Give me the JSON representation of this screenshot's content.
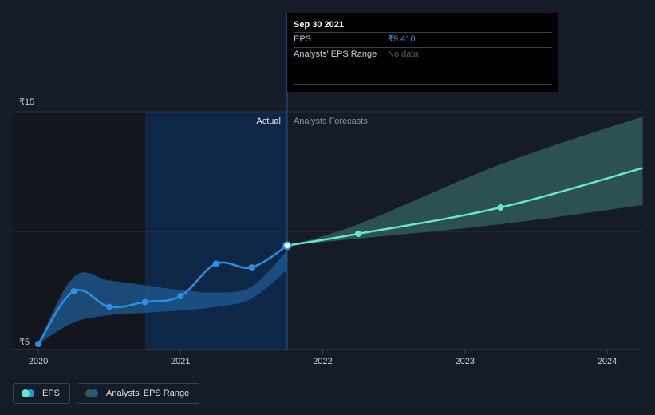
{
  "tooltip": {
    "date": "Sep 30 2021",
    "eps_label": "EPS",
    "eps_value": "₹9.410",
    "range_label": "Analysts' EPS Range",
    "range_value": "No data"
  },
  "legend": {
    "eps_label": "EPS",
    "range_label": "Analysts' EPS Range"
  },
  "colors": {
    "background": "#151b27",
    "eps_actual": "#2d8fe0",
    "eps_forecast": "#62e8d0",
    "range_actual": "#1f5c96",
    "range_forecast": "#2f5a5a",
    "highlight_region": "#0f2746"
  },
  "chart_data": {
    "type": "line",
    "y_unit": "₹",
    "ylim": [
      5,
      15
    ],
    "yticks": [
      {
        "value": 15,
        "label": "₹15"
      },
      {
        "value": 5,
        "label": "₹5"
      }
    ],
    "xlim": [
      2020,
      2024.25
    ],
    "xticks": [
      {
        "value": 2020,
        "label": "2020"
      },
      {
        "value": 2021,
        "label": "2021"
      },
      {
        "value": 2022,
        "label": "2022"
      },
      {
        "value": 2023,
        "label": "2023"
      },
      {
        "value": 2024,
        "label": "2024"
      }
    ],
    "gridlines_y": [
      15,
      10
    ],
    "regions": {
      "actual_label": "Actual",
      "forecast_label": "Analysts Forecasts",
      "divider_x": 2021.75,
      "highlight_start_x": 2020.75
    },
    "series": [
      {
        "name": "EPS",
        "role": "actual",
        "points": [
          {
            "x": 2020.0,
            "y": 5.3
          },
          {
            "x": 2020.25,
            "y": 7.5
          },
          {
            "x": 2020.5,
            "y": 6.85
          },
          {
            "x": 2020.75,
            "y": 7.05
          },
          {
            "x": 2021.0,
            "y": 7.3
          },
          {
            "x": 2021.25,
            "y": 8.65
          },
          {
            "x": 2021.5,
            "y": 8.5
          },
          {
            "x": 2021.75,
            "y": 9.41
          }
        ]
      },
      {
        "name": "EPS",
        "role": "forecast",
        "points": [
          {
            "x": 2021.75,
            "y": 9.41
          },
          {
            "x": 2022.25,
            "y": 9.9
          },
          {
            "x": 2023.25,
            "y": 11.0
          },
          {
            "x": 2024.25,
            "y": 12.65
          }
        ]
      }
    ],
    "range_actual": [
      {
        "x": 2020.0,
        "low": 5.3,
        "high": 5.3
      },
      {
        "x": 2020.25,
        "low": 6.2,
        "high": 8.1
      },
      {
        "x": 2020.5,
        "low": 6.5,
        "high": 7.95
      },
      {
        "x": 2020.75,
        "low": 6.6,
        "high": 7.75
      },
      {
        "x": 2021.0,
        "low": 6.7,
        "high": 7.55
      },
      {
        "x": 2021.25,
        "low": 6.85,
        "high": 7.45
      },
      {
        "x": 2021.5,
        "low": 7.2,
        "high": 7.7
      },
      {
        "x": 2021.75,
        "low": 8.4,
        "high": 9.2
      }
    ],
    "range_forecast": [
      {
        "x": 2021.75,
        "low": 9.41,
        "high": 9.41
      },
      {
        "x": 2022.25,
        "low": 9.7,
        "high": 10.3
      },
      {
        "x": 2023.25,
        "low": 10.3,
        "high": 12.8
      },
      {
        "x": 2024.25,
        "low": 11.1,
        "high": 14.8
      }
    ]
  }
}
